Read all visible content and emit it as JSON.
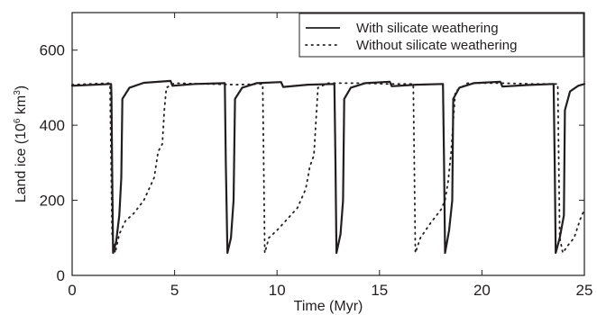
{
  "chart_data": {
    "type": "line",
    "xlabel": "Time (Myr)",
    "ylabel": {
      "base": "Land ice (10",
      "exp1": "6",
      "mid": " km",
      "exp2": "3",
      "end": ")"
    },
    "xlim": [
      0,
      25
    ],
    "ylim": [
      0,
      700
    ],
    "x_ticks": [
      0,
      5,
      10,
      15,
      20,
      25
    ],
    "y_ticks": [
      0,
      200,
      400,
      600
    ],
    "grid": false,
    "legend_position": "top-right",
    "series": [
      {
        "name": "With silicate weathering",
        "style": "solid",
        "color": "#231f20",
        "points": [
          [
            0,
            505
          ],
          [
            1.9,
            510
          ],
          [
            1.92,
            480
          ],
          [
            1.95,
            300
          ],
          [
            2.0,
            60
          ],
          [
            2.15,
            90
          ],
          [
            2.3,
            160
          ],
          [
            2.4,
            260
          ],
          [
            2.45,
            470
          ],
          [
            2.8,
            500
          ],
          [
            3.5,
            513
          ],
          [
            4.8,
            518
          ],
          [
            4.9,
            505
          ],
          [
            6.0,
            510
          ],
          [
            7.45,
            512
          ],
          [
            7.5,
            300
          ],
          [
            7.58,
            60
          ],
          [
            7.75,
            100
          ],
          [
            7.88,
            200
          ],
          [
            7.95,
            470
          ],
          [
            8.3,
            500
          ],
          [
            9.0,
            512
          ],
          [
            10.2,
            515
          ],
          [
            10.3,
            502
          ],
          [
            11.5,
            508
          ],
          [
            12.8,
            510
          ],
          [
            12.85,
            300
          ],
          [
            12.9,
            60
          ],
          [
            13.1,
            110
          ],
          [
            13.22,
            200
          ],
          [
            13.28,
            470
          ],
          [
            13.6,
            500
          ],
          [
            14.3,
            512
          ],
          [
            15.5,
            516
          ],
          [
            15.6,
            504
          ],
          [
            16.8,
            508
          ],
          [
            18.1,
            510
          ],
          [
            18.15,
            300
          ],
          [
            18.2,
            60
          ],
          [
            18.4,
            120
          ],
          [
            18.55,
            200
          ],
          [
            18.6,
            470
          ],
          [
            18.9,
            500
          ],
          [
            19.6,
            512
          ],
          [
            20.9,
            516
          ],
          [
            21.0,
            503
          ],
          [
            22.2,
            507
          ],
          [
            23.5,
            510
          ],
          [
            23.55,
            300
          ],
          [
            23.6,
            60
          ],
          [
            23.8,
            100
          ],
          [
            24.0,
            160
          ],
          [
            24.05,
            440
          ],
          [
            24.3,
            490
          ],
          [
            24.7,
            505
          ],
          [
            25,
            510
          ]
        ]
      },
      {
        "name": "Without silicate weathering",
        "style": "dotted",
        "color": "#231f20",
        "points": [
          [
            0,
            508
          ],
          [
            1.8,
            512
          ],
          [
            1.85,
            510
          ],
          [
            1.9,
            300
          ],
          [
            1.95,
            110
          ],
          [
            2.1,
            60
          ],
          [
            2.3,
            110
          ],
          [
            2.6,
            145
          ],
          [
            3.0,
            165
          ],
          [
            3.5,
            200
          ],
          [
            4.0,
            260
          ],
          [
            4.2,
            330
          ],
          [
            4.4,
            350
          ],
          [
            4.5,
            440
          ],
          [
            4.6,
            500
          ],
          [
            5.0,
            512
          ],
          [
            6.5,
            510
          ],
          [
            8.0,
            508
          ],
          [
            9.3,
            510
          ],
          [
            9.35,
            300
          ],
          [
            9.4,
            60
          ],
          [
            9.6,
            100
          ],
          [
            10.0,
            120
          ],
          [
            10.5,
            150
          ],
          [
            11.0,
            180
          ],
          [
            11.4,
            230
          ],
          [
            11.6,
            290
          ],
          [
            11.8,
            320
          ],
          [
            12.0,
            500
          ],
          [
            12.5,
            512
          ],
          [
            14.0,
            512
          ],
          [
            15.5,
            510
          ],
          [
            16.65,
            510
          ],
          [
            16.7,
            300
          ],
          [
            16.75,
            60
          ],
          [
            17.0,
            100
          ],
          [
            17.5,
            140
          ],
          [
            18.0,
            175
          ],
          [
            18.2,
            200
          ],
          [
            18.35,
            250
          ],
          [
            18.5,
            330
          ],
          [
            18.7,
            490
          ],
          [
            19.3,
            512
          ],
          [
            21.0,
            512
          ],
          [
            22.5,
            510
          ],
          [
            23.7,
            510
          ],
          [
            23.75,
            300
          ],
          [
            23.8,
            100
          ],
          [
            23.95,
            60
          ],
          [
            24.2,
            80
          ],
          [
            24.5,
            100
          ],
          [
            24.8,
            150
          ],
          [
            25,
            175
          ]
        ]
      }
    ]
  }
}
